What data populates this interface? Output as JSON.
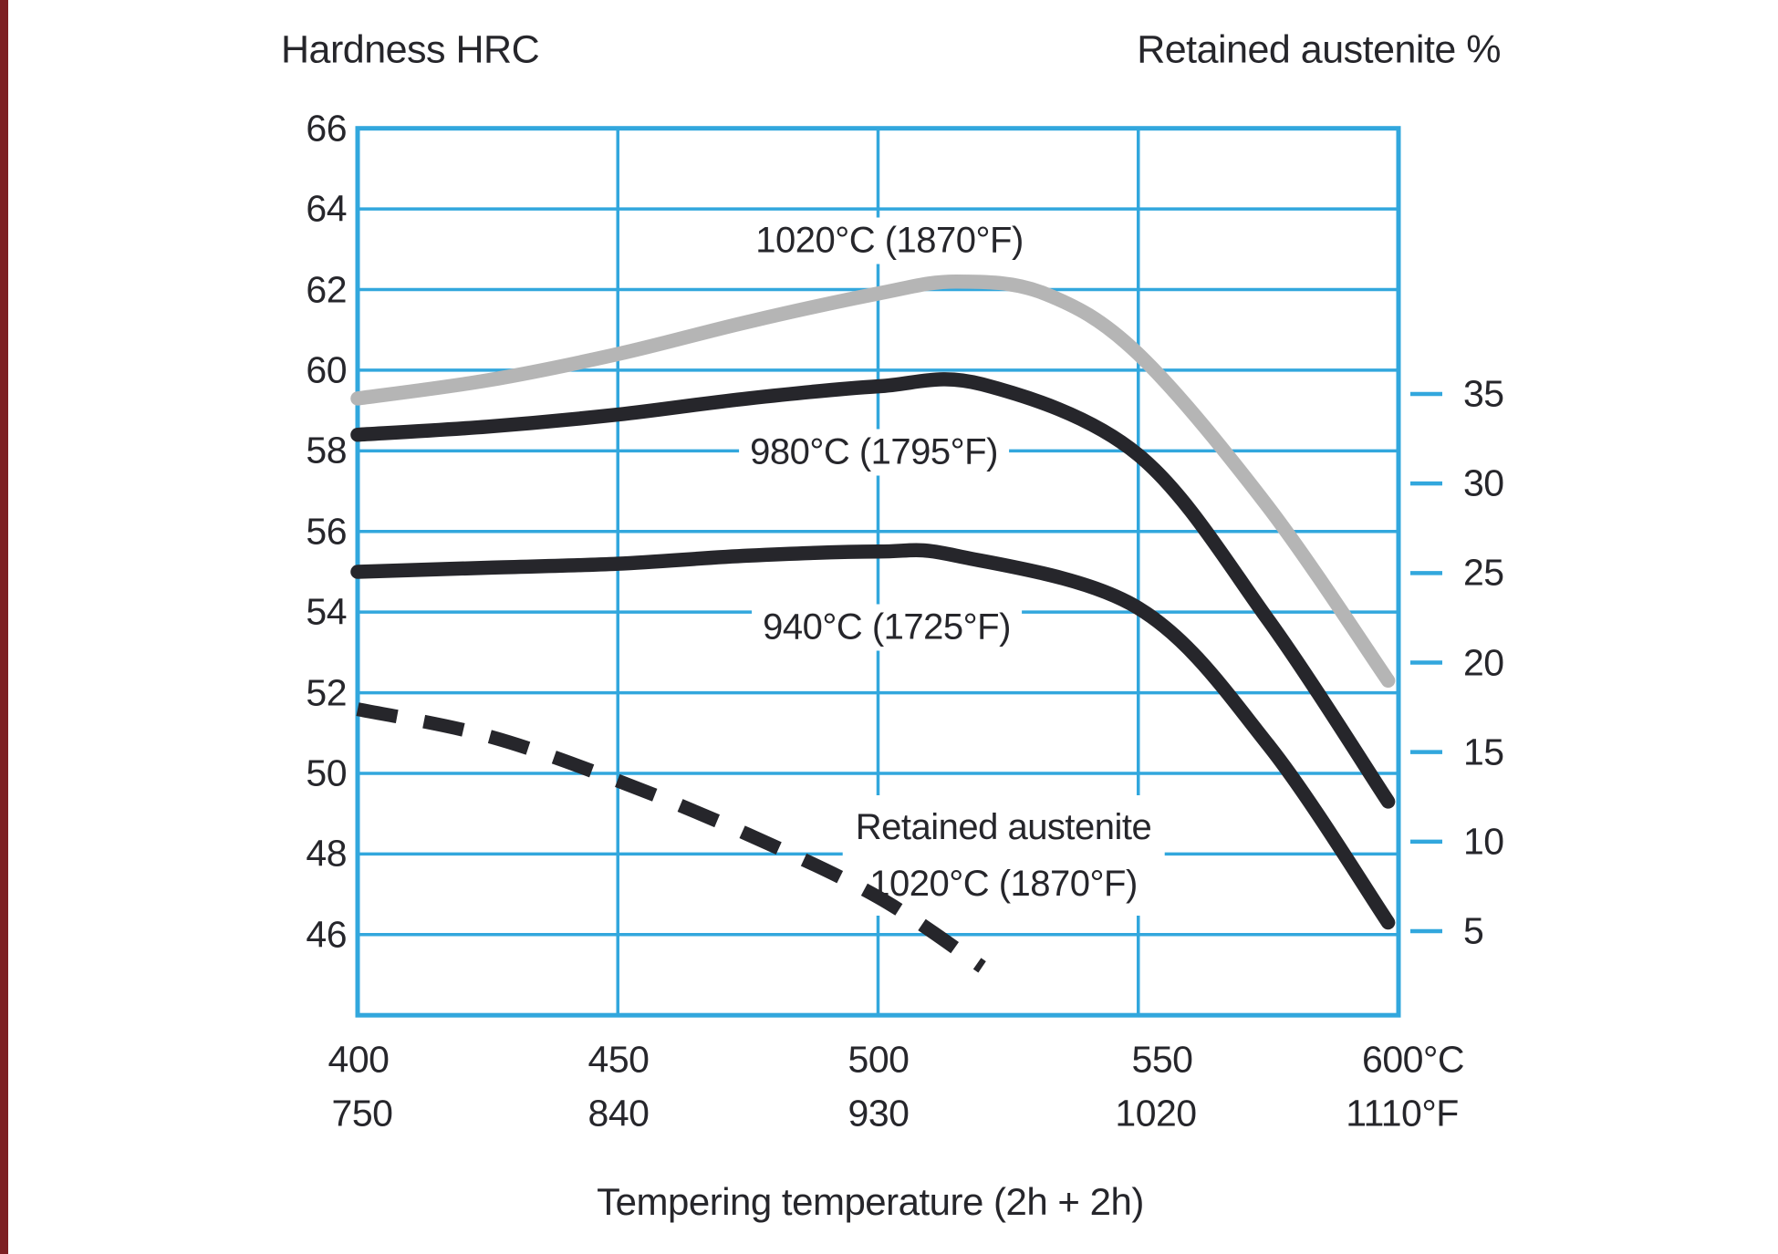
{
  "chart": {
    "left_axis_title": "Hardness HRC",
    "right_axis_title": "Retained austenite %",
    "x_axis_title": "Tempering temperature (2h + 2h)",
    "curve_labels": {
      "c1020": "1020°C (1870°F)",
      "c980": "980°C (1795°F)",
      "c940": "940°C (1725°F)",
      "ra_line1": "Retained austenite",
      "ra_line2": "1020°C (1870°F)"
    },
    "colors": {
      "grid_blue": "#32a7dd",
      "curve_black": "#26262b",
      "curve_gray": "#b5b5b5",
      "text": "#26262b",
      "background": "#ffffff",
      "page_edge_red": "#7d2023"
    }
  },
  "chart_data": {
    "type": "line",
    "title": "",
    "xlabel": "Tempering temperature (2h + 2h)",
    "x_axis": {
      "unit_row_celsius": [
        "400",
        "450",
        "500",
        "550",
        "600°C"
      ],
      "unit_row_fahrenheit": [
        "750",
        "840",
        "930",
        "1020",
        "1110°F"
      ],
      "values_celsius": [
        400,
        450,
        500,
        550,
        600
      ],
      "range_celsius": [
        400,
        600
      ],
      "grid": true
    },
    "left_y_axis": {
      "label": "Hardness HRC",
      "ticks": [
        66,
        64,
        62,
        60,
        58,
        56,
        54,
        52,
        50,
        48,
        46
      ],
      "range": [
        44,
        66
      ],
      "grid": true
    },
    "right_y_axis": {
      "label": "Retained austenite %",
      "ticks": [
        35,
        30,
        25,
        20,
        15,
        10,
        5
      ],
      "range": [
        0,
        50
      ],
      "grid": false
    },
    "series": [
      {
        "name": "Hardness 1020°C (1870°F)",
        "axis": "left",
        "style": "solid",
        "color": "#b5b5b5",
        "points": [
          [
            400,
            59.3
          ],
          [
            425,
            59.75
          ],
          [
            450,
            60.4
          ],
          [
            475,
            61.2
          ],
          [
            500,
            61.9
          ],
          [
            515,
            62.2
          ],
          [
            532,
            61.9
          ],
          [
            550,
            60.4
          ],
          [
            575,
            56.6
          ],
          [
            598,
            52.3
          ]
        ]
      },
      {
        "name": "Hardness 980°C (1795°F)",
        "axis": "left",
        "style": "solid",
        "color": "#26262b",
        "points": [
          [
            400,
            58.4
          ],
          [
            425,
            58.6
          ],
          [
            450,
            58.9
          ],
          [
            475,
            59.3
          ],
          [
            500,
            59.6
          ],
          [
            520,
            59.65
          ],
          [
            550,
            57.9
          ],
          [
            575,
            53.8
          ],
          [
            598,
            49.3
          ]
        ]
      },
      {
        "name": "Hardness 940°C (1725°F)",
        "axis": "left",
        "style": "solid",
        "color": "#26262b",
        "points": [
          [
            400,
            55.0
          ],
          [
            425,
            55.1
          ],
          [
            450,
            55.2
          ],
          [
            475,
            55.4
          ],
          [
            500,
            55.5
          ],
          [
            515,
            55.4
          ],
          [
            550,
            54.1
          ],
          [
            575,
            50.7
          ],
          [
            598,
            46.3
          ]
        ]
      },
      {
        "name": "Retained austenite 1020°C (1870°F)",
        "axis": "right",
        "style": "dashed",
        "color": "#26262b",
        "points": [
          [
            400,
            17.4
          ],
          [
            425,
            15.9
          ],
          [
            450,
            13.4
          ],
          [
            475,
            10.4
          ],
          [
            500,
            6.9
          ],
          [
            520,
            3.0
          ]
        ]
      }
    ],
    "legend_position": "labels-on-chart"
  }
}
